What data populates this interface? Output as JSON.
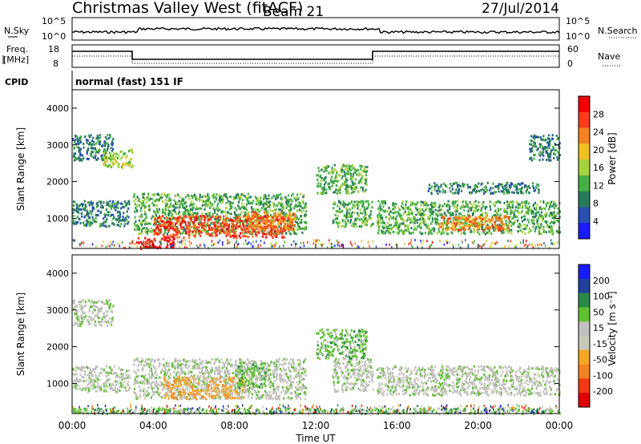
{
  "header": {
    "title": "Christmas Valley West (fitACF)",
    "beam": "Beam 21",
    "date": "27/Jul/2014"
  },
  "top_panels": {
    "nsky": {
      "label": "N.Sky",
      "ticks": [
        "10^5",
        "10^0"
      ],
      "right_ticks": [
        "10^5",
        "10^0"
      ],
      "right_label": "N.Search"
    },
    "freq": {
      "label": "Freq.",
      "unit": "[MHz]",
      "ticks": [
        "18",
        "8"
      ],
      "right_ticks": [
        "60",
        "0"
      ],
      "right_label": "Nave"
    },
    "cpid": {
      "label": "CPID",
      "text": "normal (fast) 151 IF"
    }
  },
  "colors": {
    "power": [
      "#1a1aff",
      "#2850b4",
      "#2a7a5a",
      "#45b045",
      "#a6d23a",
      "#f0c020",
      "#f58220",
      "#ff3a1a",
      "#f00000"
    ],
    "velocity": [
      "#e00000",
      "#f03a10",
      "#f58220",
      "#f5a623",
      "#c8c8b8",
      "#c0c0c0",
      "#60c030",
      "#2a8a4a",
      "#2040a0",
      "#1a1aff"
    ]
  },
  "chart_data": [
    {
      "type": "heatmap",
      "name": "power",
      "ylabel": "Slant Range [km]",
      "ylim": [
        180,
        4500
      ],
      "yticks": [
        1000,
        2000,
        3000,
        4000
      ],
      "xlim": [
        0,
        24
      ],
      "colorbar": {
        "label": "Power [dB]",
        "ticks": [
          "28",
          "24",
          "20",
          "16",
          "12",
          "8",
          "4"
        ]
      },
      "regions": [
        {
          "t0": 0.0,
          "t1": 2.8,
          "r0": 800,
          "r1": 1500,
          "level": 2
        },
        {
          "t0": 0.0,
          "t1": 2.0,
          "r0": 2600,
          "r1": 3300,
          "level": 2
        },
        {
          "t0": 1.5,
          "t1": 3.0,
          "r0": 2400,
          "r1": 2900,
          "level": 4
        },
        {
          "t0": 3.0,
          "t1": 11.5,
          "r0": 600,
          "r1": 1700,
          "level": 3
        },
        {
          "t0": 4.0,
          "t1": 10.5,
          "r0": 500,
          "r1": 1100,
          "level": 7
        },
        {
          "t0": 3.2,
          "t1": 5.0,
          "r0": 200,
          "r1": 500,
          "level": 8
        },
        {
          "t0": 8.5,
          "t1": 11.0,
          "r0": 700,
          "r1": 1200,
          "level": 6
        },
        {
          "t0": 12.8,
          "t1": 14.8,
          "r0": 800,
          "r1": 1500,
          "level": 3
        },
        {
          "t0": 12.0,
          "t1": 14.5,
          "r0": 1700,
          "r1": 2500,
          "level": 3
        },
        {
          "t0": 15.0,
          "t1": 24.0,
          "r0": 600,
          "r1": 1500,
          "level": 3
        },
        {
          "t0": 18.0,
          "t1": 21.5,
          "r0": 700,
          "r1": 1100,
          "level": 6
        },
        {
          "t0": 17.5,
          "t1": 23.0,
          "r0": 1700,
          "r1": 2000,
          "level": 2
        },
        {
          "t0": 22.5,
          "t1": 24.0,
          "r0": 2600,
          "r1": 3300,
          "level": 2
        }
      ]
    },
    {
      "type": "heatmap",
      "name": "velocity",
      "ylabel": "Slant Range [km]",
      "xlabel": "Time UT",
      "ylim": [
        180,
        4500
      ],
      "yticks": [
        1000,
        2000,
        3000,
        4000
      ],
      "xlim": [
        0,
        24
      ],
      "xticks": [
        "00:00",
        "04:00",
        "08:00",
        "12:00",
        "16:00",
        "20:00",
        "00:00"
      ],
      "colorbar": {
        "label": "Velocity [m s⁻¹]",
        "ticks": [
          "200",
          "100",
          "50",
          "15",
          "-15",
          "-50",
          "-100",
          "-200"
        ]
      },
      "regions": [
        {
          "t0": 0.0,
          "t1": 2.8,
          "r0": 800,
          "r1": 1500,
          "level": 5
        },
        {
          "t0": 0.0,
          "t1": 2.0,
          "r0": 2600,
          "r1": 3300,
          "level": 5
        },
        {
          "t0": 3.0,
          "t1": 11.5,
          "r0": 600,
          "r1": 1700,
          "level": 5
        },
        {
          "t0": 4.5,
          "t1": 8.5,
          "r0": 600,
          "r1": 1200,
          "level": 3
        },
        {
          "t0": 8.0,
          "t1": 9.5,
          "r0": 900,
          "r1": 1600,
          "level": 6
        },
        {
          "t0": 12.8,
          "t1": 14.8,
          "r0": 800,
          "r1": 1700,
          "level": 5
        },
        {
          "t0": 12.0,
          "t1": 14.5,
          "r0": 1700,
          "r1": 2500,
          "level": 6
        },
        {
          "t0": 15.0,
          "t1": 24.0,
          "r0": 700,
          "r1": 1500,
          "level": 5
        },
        {
          "t0": 0.0,
          "t1": 24.0,
          "r0": 200,
          "r1": 350,
          "level": 6
        }
      ]
    }
  ]
}
